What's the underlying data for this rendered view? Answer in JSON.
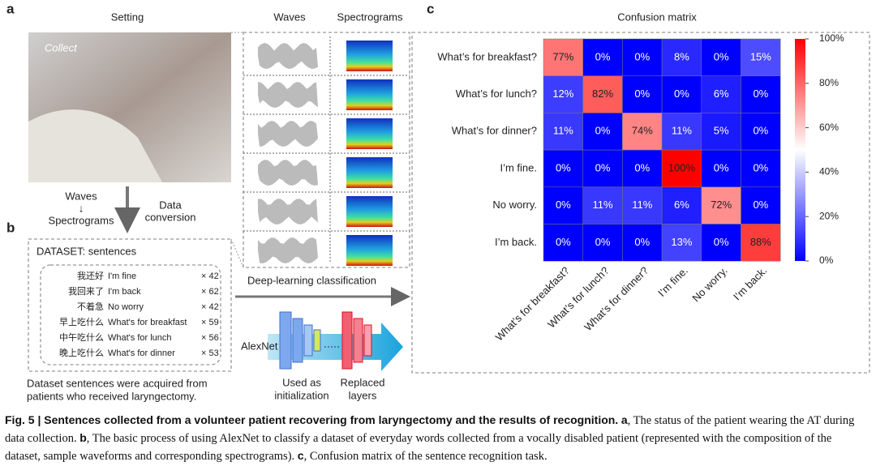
{
  "panel_a": {
    "label": "a",
    "title": "Setting",
    "photo_label": "Collect",
    "arrow_top": "Waves",
    "arrow_mid": "↓",
    "arrow_bottom": "Spectrograms",
    "conversion": [
      "Data",
      "conversion"
    ]
  },
  "panel_b": {
    "label": "b",
    "box_title": "DATASET: sentences",
    "rows": [
      {
        "zh": "我还好",
        "en": "I'm fine",
        "count": "× 42"
      },
      {
        "zh": "我回来了",
        "en": "I'm back",
        "count": "× 62"
      },
      {
        "zh": "不着急",
        "en": "No worry",
        "count": "× 42"
      },
      {
        "zh": "早上吃什么",
        "en": "What's for breakfast",
        "count": "× 59"
      },
      {
        "zh": "中午吃什么",
        "en": "What's for lunch",
        "count": "× 56"
      },
      {
        "zh": "晚上吃什么",
        "en": "What's for dinner",
        "count": "× 53"
      }
    ],
    "note": [
      "Dataset sentences were acquired from",
      "patients who received laryngectomy."
    ],
    "waves_header": "Waves",
    "spectrograms_header": "Spectrograms",
    "classification": "Deep-learning classification",
    "network": "AlexNet",
    "init": [
      "Used as",
      "initialization"
    ],
    "replaced": [
      "Replaced",
      "layers"
    ]
  },
  "panel_c": {
    "label": "c",
    "title": "Confusion matrix",
    "rows": [
      "What’s for breakfast?",
      "What’s for lunch?",
      "What’s for dinner?",
      "I’m fine.",
      "No worry.",
      "I’m back."
    ],
    "cols": [
      "What’s for breakfast?",
      "What’s for lunch?",
      "What’s for dinner?",
      "I’m fine.",
      "No worry.",
      "I’m back."
    ],
    "values": [
      [
        77,
        0,
        0,
        8,
        0,
        15
      ],
      [
        12,
        82,
        0,
        0,
        6,
        0
      ],
      [
        11,
        0,
        74,
        11,
        5,
        0
      ],
      [
        0,
        0,
        0,
        100,
        0,
        0
      ],
      [
        0,
        11,
        11,
        6,
        72,
        0
      ],
      [
        0,
        0,
        0,
        13,
        0,
        88
      ]
    ],
    "value_labels": [
      [
        "77%",
        "0%",
        "0%",
        "8%",
        "0%",
        "15%"
      ],
      [
        "12%",
        "82%",
        "0%",
        "0%",
        "6%",
        "0%"
      ],
      [
        "11%",
        "0%",
        "74%",
        "11%",
        "5%",
        "0%"
      ],
      [
        "0%",
        "0%",
        "0%",
        "100%",
        "0%",
        "0%"
      ],
      [
        "0%",
        "11%",
        "11%",
        "6%",
        "72%",
        "0%"
      ],
      [
        "0%",
        "0%",
        "0%",
        "13%",
        "0%",
        "88%"
      ]
    ],
    "range": [
      0,
      100
    ],
    "colorbar_ticks": [
      {
        "value": 0,
        "label": "0%"
      },
      {
        "value": 20,
        "label": "20%"
      },
      {
        "value": 40,
        "label": "40%"
      },
      {
        "value": 60,
        "label": "60%"
      },
      {
        "value": 80,
        "label": "80%"
      },
      {
        "value": 100,
        "label": "100%"
      }
    ]
  },
  "caption": {
    "title": "Fig. 5 | Sentences collected from a volunteer patient recovering from laryngectomy and the results of recognition.",
    "a": "a",
    "a_text": ", The status of the patient wearing the AT during data collection.",
    "b": "b",
    "b_text": ", The basic process of using AlexNet to classify a dataset of everyday words collected from a vocally disabled patient (represented with the composition of the dataset, sample waveforms and corresponding spectrograms).",
    "c": "c",
    "c_text": ", Confusion matrix of the sentence recognition task."
  }
}
